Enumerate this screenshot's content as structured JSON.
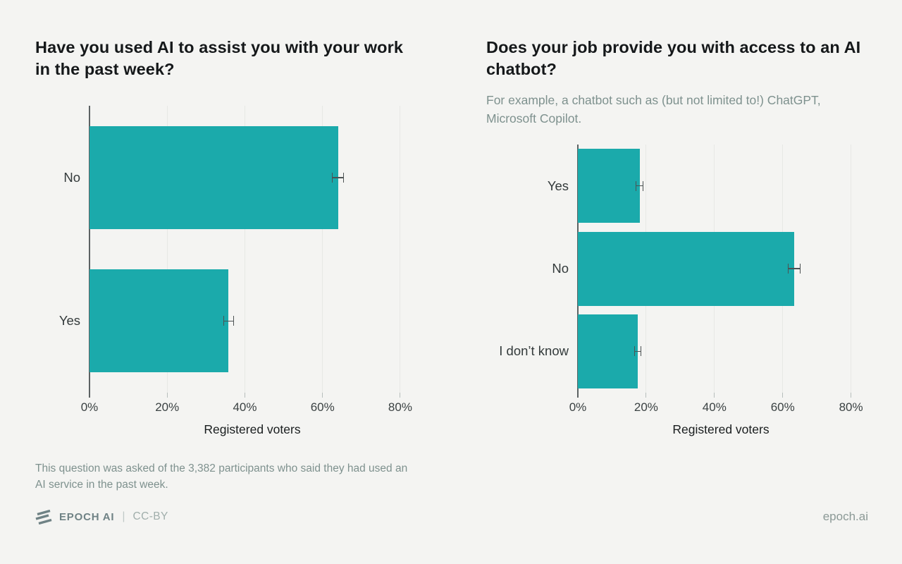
{
  "page": {
    "background_color": "#f4f4f2",
    "accent_color": "#1baaab"
  },
  "chart_data": [
    {
      "type": "bar",
      "orientation": "horizontal",
      "title": "Have you used AI to assist you with your work in the past week?",
      "categories": [
        "No",
        "Yes"
      ],
      "values": [
        64,
        35.8
      ],
      "errors": [
        1.5,
        1.4
      ],
      "bar_color": "#1baaab",
      "xlabel": "Registered voters",
      "xlim": [
        0,
        84
      ],
      "grid": "vertical",
      "legend": "none",
      "xticks": [
        {
          "label": "0%",
          "value": 0
        },
        {
          "label": "20%",
          "value": 20
        },
        {
          "label": "40%",
          "value": 40
        },
        {
          "label": "60%",
          "value": 60
        },
        {
          "label": "80%",
          "value": 80
        }
      ],
      "footnote": "This question was asked of the 3,382 participants who said they had used an AI service in the past week."
    },
    {
      "type": "bar",
      "orientation": "horizontal",
      "title": "Does your job provide you with access to an AI chatbot?",
      "subtitle": "For example, a chatbot such as (but not limited to!) ChatGPT, Microsoft Copilot.",
      "categories": [
        "Yes",
        "No",
        "I don’t know"
      ],
      "values": [
        18.1,
        63.4,
        17.6
      ],
      "errors": [
        1.1,
        1.9,
        1.0
      ],
      "bar_color": "#1baaab",
      "xlabel": "Registered voters",
      "xlim": [
        0,
        84
      ],
      "grid": "vertical",
      "legend": "none",
      "xticks": [
        {
          "label": "0%",
          "value": 0
        },
        {
          "label": "20%",
          "value": 20
        },
        {
          "label": "40%",
          "value": 40
        },
        {
          "label": "60%",
          "value": 60
        },
        {
          "label": "80%",
          "value": 80
        }
      ]
    }
  ],
  "footer": {
    "brand": "EPOCH AI",
    "separator": "|",
    "license": "CC-BY",
    "website": "epoch.ai"
  }
}
